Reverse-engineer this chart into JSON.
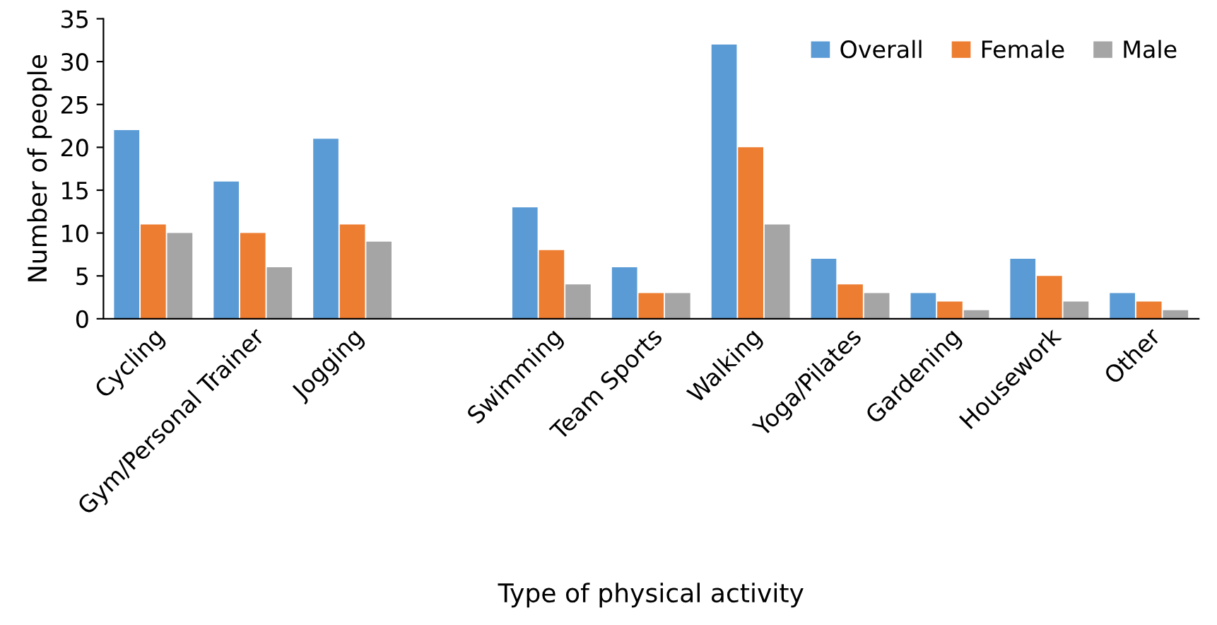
{
  "chart_data": {
    "type": "bar",
    "xlabel": "Type of physical activity",
    "ylabel": "Number of people",
    "categories": [
      "Cycling",
      "Gym/Personal Trainer",
      "Jogging",
      null,
      "Swimming",
      "Team Sports",
      "Walking",
      "Yoga/Pilates",
      "Gardening",
      "Housework",
      "Other"
    ],
    "series": [
      {
        "name": "Overall",
        "color": "#5b9bd5",
        "values": [
          22,
          16,
          21,
          0,
          13,
          6,
          32,
          7,
          3,
          7,
          3
        ]
      },
      {
        "name": "Female",
        "color": "#ed7d31",
        "values": [
          11,
          10,
          11,
          0,
          8,
          3,
          20,
          4,
          2,
          5,
          2
        ]
      },
      {
        "name": "Male",
        "color": "#a5a5a5",
        "values": [
          10,
          6,
          9,
          0,
          4,
          3,
          11,
          3,
          1,
          2,
          1
        ]
      }
    ],
    "ylim": [
      0,
      35
    ],
    "yticks": [
      0,
      5,
      10,
      15,
      20,
      25,
      30,
      35
    ],
    "grid": false,
    "legend": "top right"
  }
}
